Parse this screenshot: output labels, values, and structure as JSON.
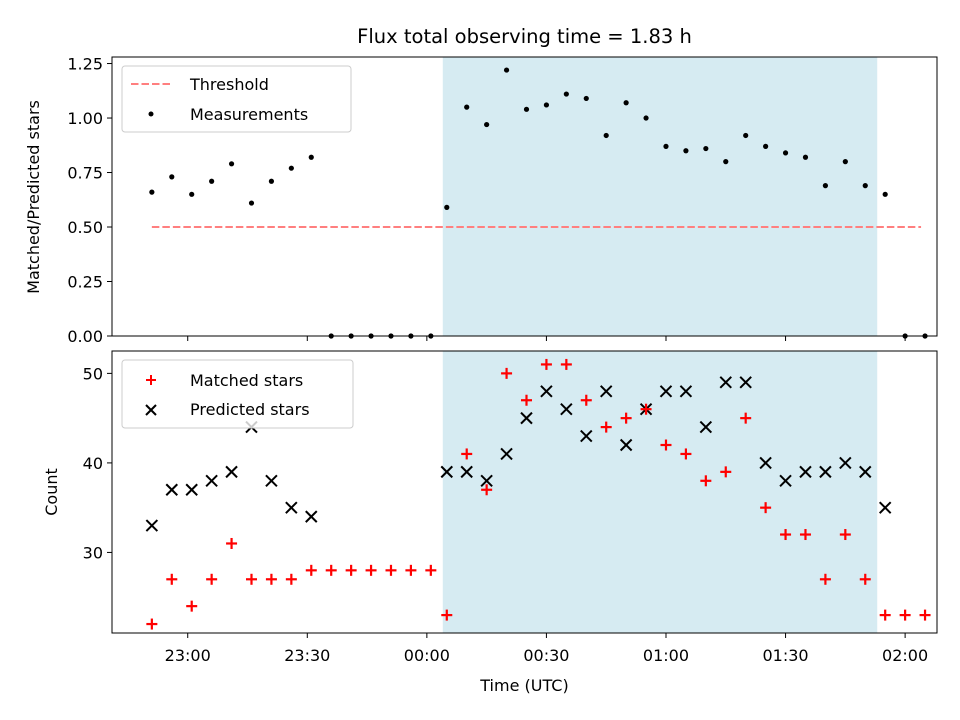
{
  "chart_data": {
    "type": "scatter",
    "title": "Flux total observing time = 1.83 h",
    "xlabel": "Time (UTC)",
    "x_axis": {
      "min": "22:41",
      "max": "02:08",
      "ticks": [
        "23:00",
        "23:30",
        "00:00",
        "00:30",
        "01:00",
        "01:30",
        "02:00"
      ]
    },
    "shaded_interval": [
      "00:04",
      "01:53"
    ],
    "colors": {
      "threshold": "#ff7f7f",
      "measurements": "#000000",
      "matched": "#ff0000",
      "predicted": "#000000",
      "shade": "#add8e6"
    },
    "panels": [
      {
        "ylabel": "Matched/Predicted stars",
        "ylim": [
          0,
          1.28
        ],
        "yticks": [
          "0.00",
          "0.25",
          "0.50",
          "0.75",
          "1.00",
          "1.25"
        ],
        "legend": [
          "Threshold",
          "Measurements"
        ],
        "legend_loc": "upper-left",
        "threshold": {
          "name": "Threshold",
          "value": 0.5,
          "x": [
            "22:51",
            "02:04"
          ]
        },
        "series": [
          {
            "name": "Measurements",
            "x": [
              "22:51",
              "22:56",
              "23:01",
              "23:06",
              "23:11",
              "23:16",
              "23:21",
              "23:26",
              "23:31",
              "23:36",
              "23:41",
              "23:46",
              "23:51",
              "23:56",
              "00:01",
              "00:05",
              "00:10",
              "00:15",
              "00:20",
              "00:25",
              "00:30",
              "00:35",
              "00:40",
              "00:45",
              "00:50",
              "00:55",
              "01:00",
              "01:05",
              "01:10",
              "01:15",
              "01:20",
              "01:25",
              "01:30",
              "01:35",
              "01:40",
              "01:45",
              "01:50",
              "01:55",
              "02:00",
              "02:05"
            ],
            "y": [
              0.66,
              0.73,
              0.65,
              0.71,
              0.79,
              0.61,
              0.71,
              0.77,
              0.82,
              0,
              0,
              0,
              0,
              0,
              0,
              0.59,
              1.05,
              0.97,
              1.22,
              1.04,
              1.06,
              1.11,
              1.09,
              0.92,
              1.07,
              1.0,
              0.87,
              0.85,
              0.86,
              0.8,
              0.92,
              0.87,
              0.84,
              0.82,
              0.69,
              0.8,
              0.69,
              0.65,
              0,
              0
            ]
          }
        ]
      },
      {
        "ylabel": "Count",
        "ylim": [
          21,
          52.5
        ],
        "yticks": [
          "30",
          "40",
          "50"
        ],
        "legend": [
          "Matched stars",
          "Predicted stars"
        ],
        "legend_loc": "upper-left",
        "series": [
          {
            "name": "Matched stars",
            "marker": "+",
            "x": [
              "22:51",
              "22:56",
              "23:01",
              "23:06",
              "23:11",
              "23:16",
              "23:21",
              "23:26",
              "23:31",
              "23:36",
              "23:41",
              "23:46",
              "23:51",
              "23:56",
              "00:01",
              "00:05",
              "00:10",
              "00:15",
              "00:20",
              "00:25",
              "00:30",
              "00:35",
              "00:40",
              "00:45",
              "00:50",
              "00:55",
              "01:00",
              "01:05",
              "01:10",
              "01:15",
              "01:20",
              "01:25",
              "01:30",
              "01:35",
              "01:40",
              "01:45",
              "01:50",
              "01:55",
              "02:00",
              "02:05"
            ],
            "y": [
              22,
              27,
              24,
              27,
              31,
              27,
              27,
              27,
              28,
              28,
              28,
              28,
              28,
              28,
              28,
              23,
              41,
              37,
              50,
              47,
              51,
              51,
              47,
              44,
              45,
              46,
              42,
              41,
              38,
              39,
              45,
              35,
              32,
              32,
              27,
              32,
              27,
              23,
              23,
              23
            ]
          },
          {
            "name": "Predicted stars",
            "marker": "x",
            "x": [
              "22:51",
              "22:56",
              "23:01",
              "23:06",
              "23:11",
              "23:16",
              "23:21",
              "23:26",
              "23:31",
              "00:05",
              "00:10",
              "00:15",
              "00:20",
              "00:25",
              "00:30",
              "00:35",
              "00:40",
              "00:45",
              "00:50",
              "00:55",
              "01:00",
              "01:05",
              "01:10",
              "01:15",
              "01:20",
              "01:25",
              "01:30",
              "01:35",
              "01:40",
              "01:45",
              "01:50",
              "01:55"
            ],
            "y": [
              33,
              37,
              37,
              38,
              39,
              44,
              38,
              35,
              34,
              39,
              39,
              38,
              41,
              45,
              48,
              46,
              43,
              48,
              42,
              46,
              48,
              48,
              44,
              49,
              49,
              40,
              38,
              39,
              39,
              40,
              39,
              35
            ]
          }
        ]
      }
    ]
  }
}
